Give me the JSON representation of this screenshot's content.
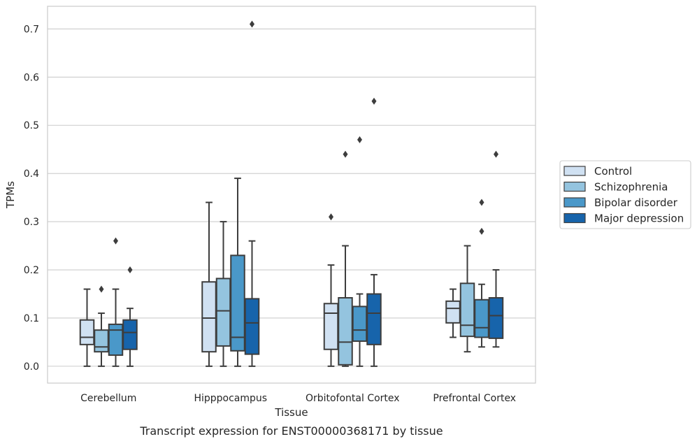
{
  "chart_data": {
    "type": "box",
    "xlabel": "Tissue",
    "ylabel": "TPMs",
    "caption": "Transcript expression for ENST00000368171 by tissue",
    "ylim": [
      -0.035,
      0.747
    ],
    "yticks": [
      "0.0",
      "0.1",
      "0.2",
      "0.3",
      "0.4",
      "0.5",
      "0.6",
      "0.7"
    ],
    "grid": "horizontal",
    "legend_placement": "right, outside plot",
    "categories": [
      "Cerebellum",
      "Hipppocampus",
      "Orbitofontal Cortex",
      "Prefrontal Cortex"
    ],
    "series": [
      {
        "name": "Control",
        "color": "#d0e1f2",
        "boxes": [
          {
            "whislo": 0.0,
            "q1": 0.045,
            "med": 0.06,
            "q3": 0.096,
            "whishi": 0.16,
            "fliers": []
          },
          {
            "whislo": 0.0,
            "q1": 0.03,
            "med": 0.1,
            "q3": 0.175,
            "whishi": 0.34,
            "fliers": []
          },
          {
            "whislo": 0.0,
            "q1": 0.035,
            "med": 0.11,
            "q3": 0.13,
            "whishi": 0.21,
            "fliers": [
              0.31
            ]
          },
          {
            "whislo": 0.06,
            "q1": 0.09,
            "med": 0.12,
            "q3": 0.135,
            "whishi": 0.16,
            "fliers": []
          }
        ]
      },
      {
        "name": "Schizophrenia",
        "color": "#94c4df",
        "boxes": [
          {
            "whislo": 0.0,
            "q1": 0.03,
            "med": 0.04,
            "q3": 0.075,
            "whishi": 0.11,
            "fliers": [
              0.16
            ]
          },
          {
            "whislo": 0.0,
            "q1": 0.042,
            "med": 0.115,
            "q3": 0.182,
            "whishi": 0.3,
            "fliers": []
          },
          {
            "whislo": 0.0,
            "q1": 0.003,
            "med": 0.05,
            "q3": 0.142,
            "whishi": 0.25,
            "fliers": [
              0.44
            ]
          },
          {
            "whislo": 0.03,
            "q1": 0.062,
            "med": 0.085,
            "q3": 0.172,
            "whishi": 0.25,
            "fliers": []
          }
        ]
      },
      {
        "name": "Bipolar disorder",
        "color": "#4a98c9",
        "boxes": [
          {
            "whislo": 0.0,
            "q1": 0.023,
            "med": 0.075,
            "q3": 0.087,
            "whishi": 0.16,
            "fliers": [
              0.26
            ]
          },
          {
            "whislo": 0.0,
            "q1": 0.032,
            "med": 0.06,
            "q3": 0.23,
            "whishi": 0.39,
            "fliers": []
          },
          {
            "whislo": 0.0,
            "q1": 0.052,
            "med": 0.075,
            "q3": 0.124,
            "whishi": 0.15,
            "fliers": [
              0.47
            ]
          },
          {
            "whislo": 0.04,
            "q1": 0.06,
            "med": 0.08,
            "q3": 0.138,
            "whishi": 0.17,
            "fliers": [
              0.28,
              0.34
            ]
          }
        ]
      },
      {
        "name": "Major depression",
        "color": "#1764ab",
        "boxes": [
          {
            "whislo": 0.0,
            "q1": 0.035,
            "med": 0.07,
            "q3": 0.096,
            "whishi": 0.12,
            "fliers": [
              0.2
            ]
          },
          {
            "whislo": 0.0,
            "q1": 0.025,
            "med": 0.09,
            "q3": 0.14,
            "whishi": 0.26,
            "fliers": [
              0.71
            ]
          },
          {
            "whislo": 0.0,
            "q1": 0.045,
            "med": 0.11,
            "q3": 0.15,
            "whishi": 0.19,
            "fliers": [
              0.55
            ]
          },
          {
            "whislo": 0.04,
            "q1": 0.058,
            "med": 0.105,
            "q3": 0.142,
            "whishi": 0.2,
            "fliers": [
              0.44
            ]
          }
        ]
      }
    ]
  }
}
